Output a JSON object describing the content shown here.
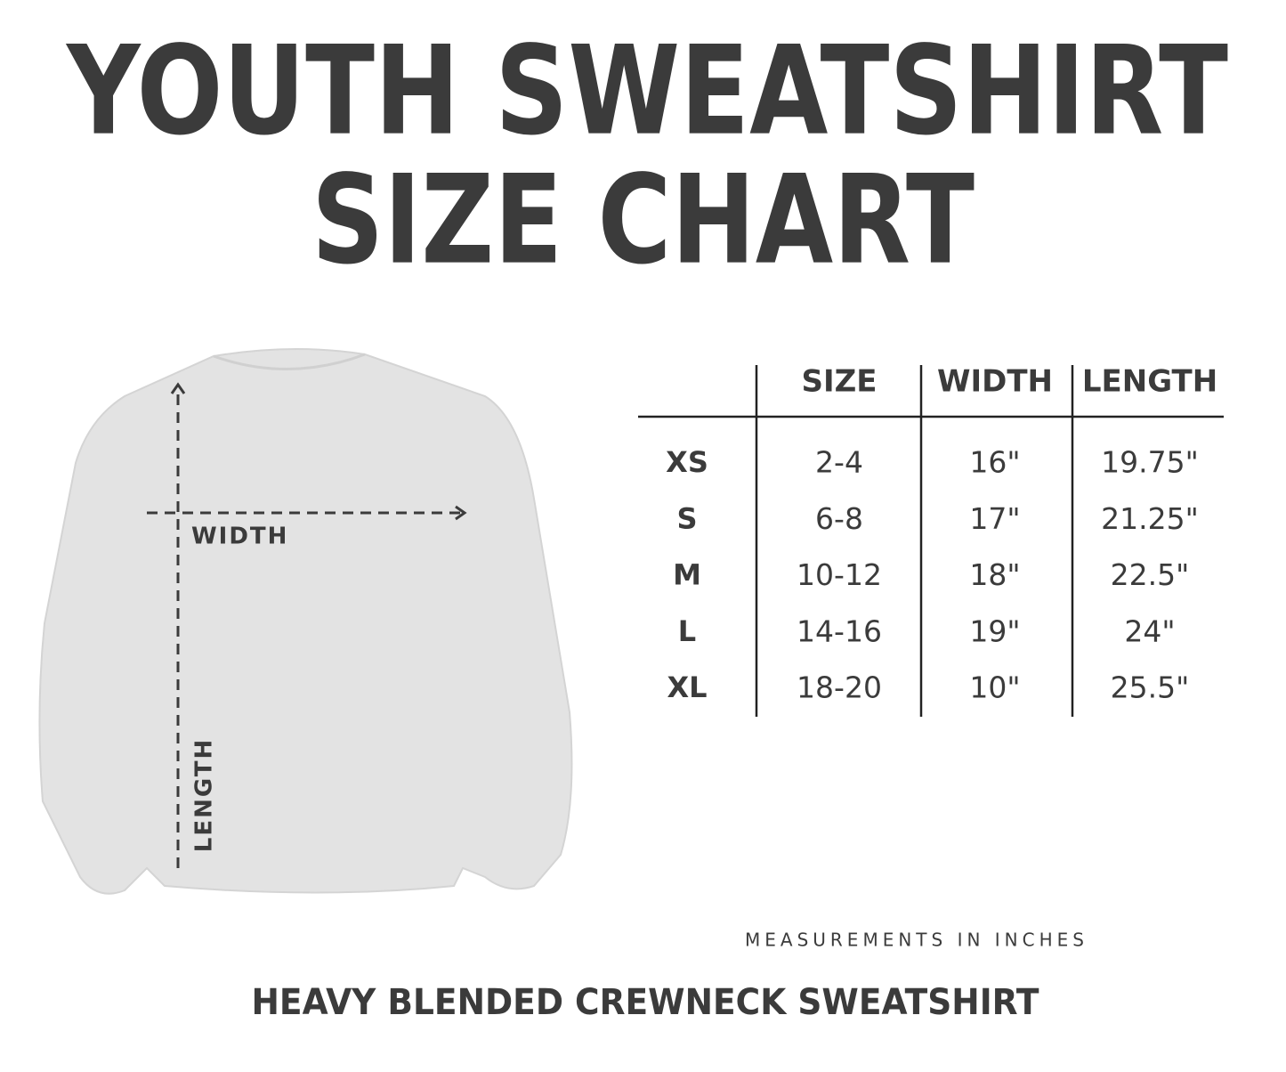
{
  "header": {
    "title_lines": [
      "YOUTH SWEATSHIRT",
      "SIZE CHART"
    ]
  },
  "illustration": {
    "width_label": "WIDTH",
    "length_label": "LENGTH"
  },
  "table": {
    "headers": [
      "SIZE",
      "WIDTH",
      "LENGTH"
    ],
    "rows": [
      [
        "XS",
        "2-4",
        "16\"",
        "19.75\""
      ],
      [
        "S",
        "6-8",
        "17\"",
        "21.25\""
      ],
      [
        "M",
        "10-12",
        "18\"",
        "22.5\""
      ],
      [
        "L",
        "14-16",
        "19\"",
        "24\""
      ],
      [
        "XL",
        "18-20",
        "10\"",
        "25.5\""
      ]
    ]
  },
  "footer": {
    "note": "MEASUREMENTS IN INCHES",
    "product": "HEAVY BLENDED CREWNECK SWEATSHIRT"
  }
}
